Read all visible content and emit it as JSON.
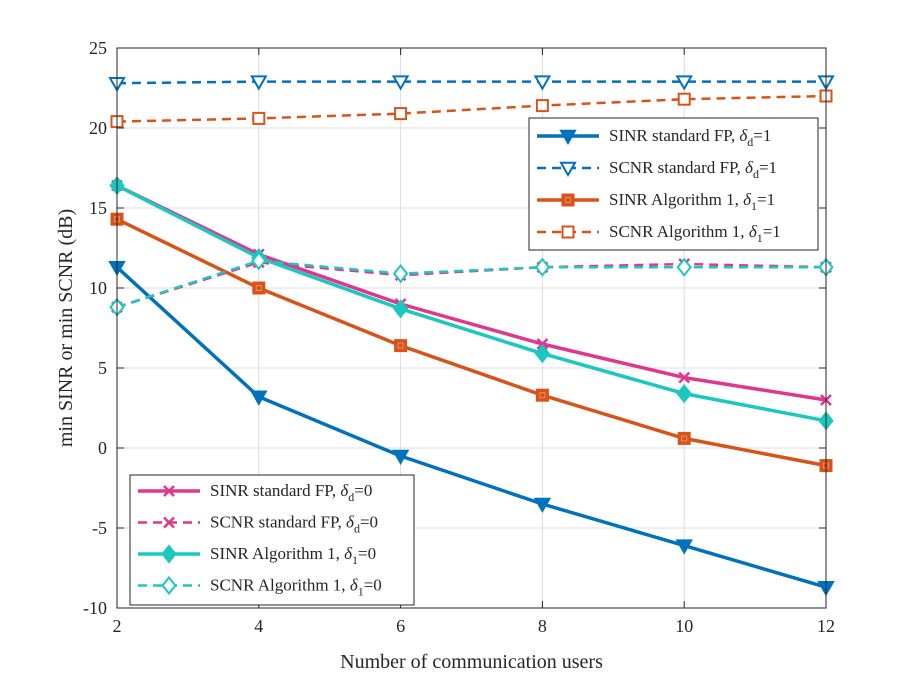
{
  "chart_data": {
    "type": "line",
    "title": "",
    "xlabel": "Number of communication users",
    "ylabel": "min SINR or min SCNR (dB)",
    "xlim": [
      2,
      12
    ],
    "ylim": [
      -10,
      25
    ],
    "xticks": [
      2,
      4,
      6,
      8,
      10,
      12
    ],
    "yticks": [
      -10,
      -5,
      0,
      5,
      10,
      15,
      20,
      25
    ],
    "xtick_labels": [
      "2",
      "4",
      "6",
      "8",
      "10",
      "12"
    ],
    "ytick_labels": [
      "-10",
      "-5",
      "0",
      "5",
      "10",
      "15",
      "20",
      "25"
    ],
    "grid": true,
    "x": [
      2,
      4,
      6,
      8,
      10,
      12
    ],
    "series": [
      {
        "name": "SINR standard FP, δd=1",
        "label_main": "SINR standard FP, ",
        "label_sym": "δ",
        "label_sub": "d",
        "label_end": "=1",
        "color": "#0072BD",
        "dash": "solid",
        "marker": "triangle-down-filled",
        "values": [
          11.3,
          3.2,
          -0.5,
          -3.5,
          -6.1,
          -8.7
        ],
        "legend": "upper"
      },
      {
        "name": "SCNR standard FP, δd=1",
        "label_main": "SCNR standard FP, ",
        "label_sym": "δ",
        "label_sub": "d",
        "label_end": "=1",
        "color": "#0072BD",
        "dash": "dashed",
        "marker": "triangle-down-open",
        "values": [
          22.8,
          22.9,
          22.9,
          22.9,
          22.9,
          22.9
        ],
        "legend": "upper"
      },
      {
        "name": "SINR Algorithm 1, δ1=1",
        "label_main": "SINR Algorithm 1, ",
        "label_sym": "δ",
        "label_sub": "1",
        "label_end": "=1",
        "color": "#D95319",
        "dash": "solid",
        "marker": "square-filled",
        "values": [
          14.3,
          10.0,
          6.4,
          3.3,
          0.6,
          -1.1
        ],
        "legend": "upper"
      },
      {
        "name": "SCNR Algorithm 1, δ1=1",
        "label_main": "SCNR Algorithm 1, ",
        "label_sym": "δ",
        "label_sub": "1",
        "label_end": "=1",
        "color": "#D95319",
        "dash": "dashed",
        "marker": "square-open",
        "values": [
          20.4,
          20.6,
          20.9,
          21.4,
          21.8,
          22.0
        ],
        "legend": "upper"
      },
      {
        "name": "SINR standard FP, δd=0",
        "label_main": "SINR standard FP, ",
        "label_sym": "δ",
        "label_sub": "d",
        "label_end": "=0",
        "color": "#E0378E",
        "dash": "solid",
        "marker": "x",
        "values": [
          16.4,
          12.1,
          9.0,
          6.5,
          4.4,
          3.0
        ],
        "legend": "lower"
      },
      {
        "name": "SCNR standard FP, δd=0",
        "label_main": "SCNR standard FP, ",
        "label_sym": "δ",
        "label_sub": "d",
        "label_end": "=0",
        "color": "#E0378E",
        "dash": "dashed",
        "marker": "x",
        "values": [
          8.8,
          11.6,
          10.8,
          11.3,
          11.5,
          11.3
        ],
        "legend": "lower"
      },
      {
        "name": "SINR Algorithm 1, δ1=0",
        "label_main": "SINR Algorithm 1, ",
        "label_sym": "δ",
        "label_sub": "1",
        "label_end": "=0",
        "color": "#1AC8C0",
        "dash": "solid",
        "marker": "diamond-filled",
        "values": [
          16.4,
          11.9,
          8.7,
          5.9,
          3.4,
          1.7
        ],
        "legend": "lower"
      },
      {
        "name": "SCNR Algorithm 1, δ1=0",
        "label_main": "SCNR Algorithm 1, ",
        "label_sym": "δ",
        "label_sub": "1",
        "label_end": "=0",
        "color": "#1AC8C0",
        "dash": "dashed",
        "marker": "diamond-open",
        "values": [
          8.8,
          11.7,
          10.9,
          11.3,
          11.3,
          11.3
        ],
        "legend": "lower"
      }
    ]
  }
}
